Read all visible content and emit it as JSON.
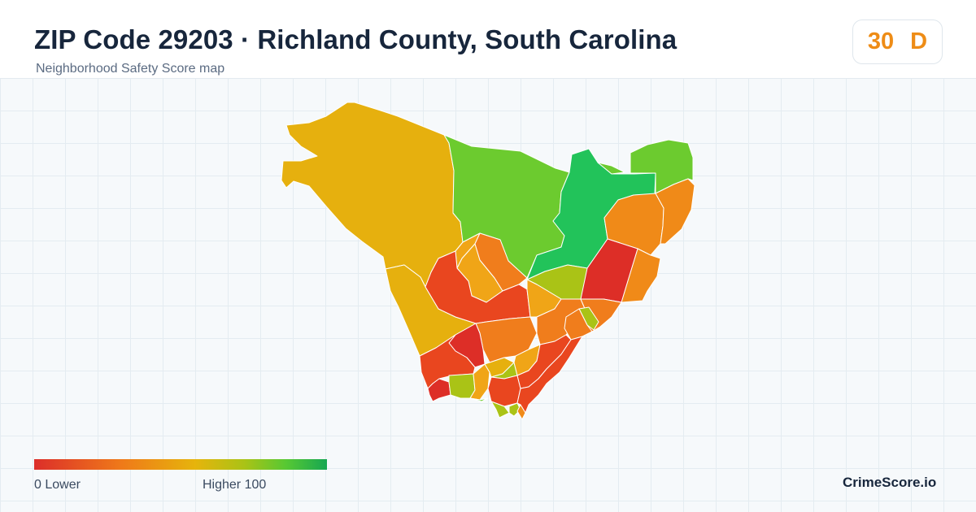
{
  "header": {
    "title": "ZIP Code 29203 · Richland County, South Carolina",
    "subtitle": "Neighborhood Safety Score map"
  },
  "score": {
    "value": "30",
    "grade": "D",
    "color": "#ee8c16"
  },
  "legend": {
    "low_text": "0  Lower",
    "high_text": "Higher  100",
    "min": 0,
    "max": 100,
    "colors": [
      "#dc2e2a",
      "#ef7a19",
      "#e6b40c",
      "#a9c316",
      "#57c833",
      "#16a752"
    ]
  },
  "brand": "CrimeScore.io",
  "map": {
    "region_colors": {
      "red": "#dd2e27",
      "red_orange": "#e9461f",
      "orange": "#f07d1c",
      "dark_orange": "#f08a18",
      "amber": "#f0a517",
      "gold": "#e6b00e",
      "yellow_green": "#aac316",
      "light_green": "#6ccb2f",
      "green": "#22c35a"
    }
  }
}
